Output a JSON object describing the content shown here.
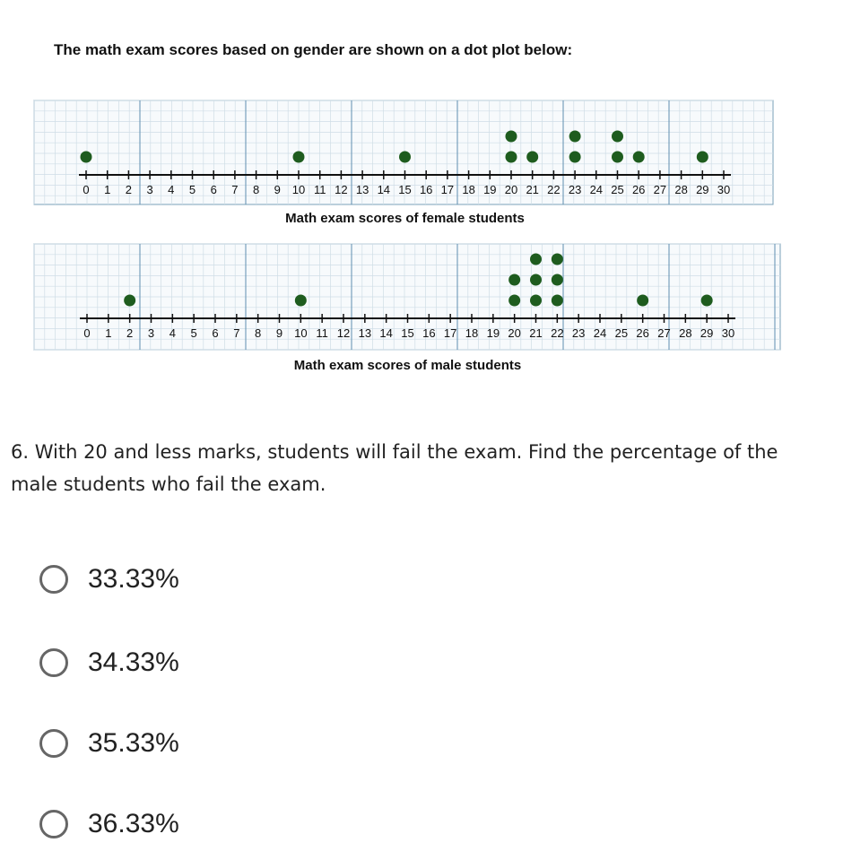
{
  "intro": "The math exam scores based on gender are shown on a dot plot below:",
  "chart_data": [
    {
      "type": "scatter",
      "subtype": "dot plot",
      "title": "Math exam scores of female students",
      "xlim": [
        0,
        30
      ],
      "ticks": [
        0,
        1,
        2,
        3,
        4,
        5,
        6,
        7,
        8,
        9,
        10,
        11,
        12,
        13,
        14,
        15,
        16,
        17,
        18,
        19,
        20,
        21,
        22,
        23,
        24,
        25,
        26,
        27,
        28,
        29,
        30
      ],
      "values": [
        0,
        10,
        15,
        20,
        20,
        21,
        23,
        23,
        25,
        25,
        26,
        29
      ],
      "dot_color": "#1e5c1e",
      "grid": true
    },
    {
      "type": "scatter",
      "subtype": "dot plot",
      "title": "Math exam scores of male students",
      "xlim": [
        0,
        30
      ],
      "ticks": [
        0,
        1,
        2,
        3,
        4,
        5,
        6,
        7,
        8,
        9,
        10,
        11,
        12,
        13,
        14,
        15,
        16,
        17,
        18,
        19,
        20,
        21,
        22,
        23,
        24,
        25,
        26,
        27,
        28,
        29,
        30
      ],
      "values": [
        2,
        10,
        20,
        20,
        21,
        21,
        21,
        22,
        22,
        22,
        26,
        29
      ],
      "dot_color": "#1e5c1e",
      "grid": true
    }
  ],
  "question": "6. With 20 and less marks, students will fail the exam. Find the percentage of the male students who fail the exam.",
  "options": [
    "33.33%",
    "34.33%",
    "35.33%",
    "36.33%"
  ]
}
